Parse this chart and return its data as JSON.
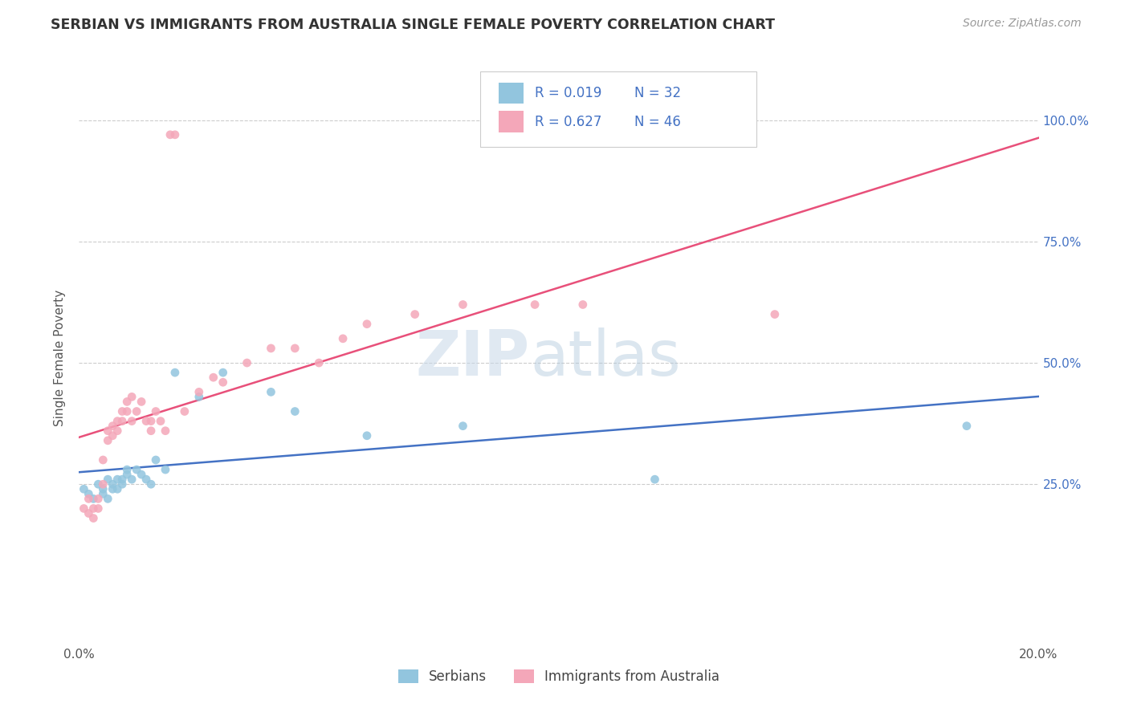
{
  "title": "SERBIAN VS IMMIGRANTS FROM AUSTRALIA SINGLE FEMALE POVERTY CORRELATION CHART",
  "source": "Source: ZipAtlas.com",
  "ylabel": "Single Female Poverty",
  "yticks_labels": [
    "25.0%",
    "50.0%",
    "75.0%",
    "100.0%"
  ],
  "ytick_vals": [
    0.25,
    0.5,
    0.75,
    1.0
  ],
  "xlim": [
    0.0,
    0.2
  ],
  "ylim": [
    -0.08,
    1.1
  ],
  "legend_serbian_R": "R = 0.019",
  "legend_serbian_N": "N = 32",
  "legend_australia_R": "R = 0.627",
  "legend_australia_N": "N = 46",
  "serbian_color": "#92C5DE",
  "australia_color": "#F4A7B9",
  "trend_serbian_color": "#4472C4",
  "trend_australia_color": "#E8507A",
  "serbian_x": [
    0.001,
    0.002,
    0.003,
    0.004,
    0.005,
    0.005,
    0.006,
    0.006,
    0.007,
    0.007,
    0.008,
    0.008,
    0.009,
    0.009,
    0.01,
    0.01,
    0.011,
    0.012,
    0.013,
    0.014,
    0.015,
    0.016,
    0.018,
    0.02,
    0.025,
    0.03,
    0.04,
    0.045,
    0.06,
    0.08,
    0.12,
    0.185
  ],
  "serbian_y": [
    0.24,
    0.23,
    0.22,
    0.25,
    0.24,
    0.23,
    0.26,
    0.22,
    0.25,
    0.24,
    0.26,
    0.24,
    0.25,
    0.26,
    0.27,
    0.28,
    0.26,
    0.28,
    0.27,
    0.26,
    0.25,
    0.3,
    0.28,
    0.48,
    0.43,
    0.48,
    0.44,
    0.4,
    0.35,
    0.37,
    0.26,
    0.37
  ],
  "australia_x": [
    0.001,
    0.002,
    0.002,
    0.003,
    0.003,
    0.004,
    0.004,
    0.005,
    0.005,
    0.006,
    0.006,
    0.007,
    0.007,
    0.008,
    0.008,
    0.009,
    0.009,
    0.01,
    0.01,
    0.011,
    0.011,
    0.012,
    0.013,
    0.014,
    0.015,
    0.015,
    0.016,
    0.017,
    0.018,
    0.019,
    0.02,
    0.022,
    0.025,
    0.028,
    0.03,
    0.035,
    0.04,
    0.045,
    0.05,
    0.055,
    0.06,
    0.07,
    0.08,
    0.095,
    0.105,
    0.145
  ],
  "australia_y": [
    0.2,
    0.19,
    0.22,
    0.2,
    0.18,
    0.22,
    0.2,
    0.3,
    0.25,
    0.36,
    0.34,
    0.37,
    0.35,
    0.38,
    0.36,
    0.4,
    0.38,
    0.42,
    0.4,
    0.43,
    0.38,
    0.4,
    0.42,
    0.38,
    0.38,
    0.36,
    0.4,
    0.38,
    0.36,
    0.97,
    0.97,
    0.4,
    0.44,
    0.47,
    0.46,
    0.5,
    0.53,
    0.53,
    0.5,
    0.55,
    0.58,
    0.6,
    0.62,
    0.62,
    0.62,
    0.6
  ]
}
